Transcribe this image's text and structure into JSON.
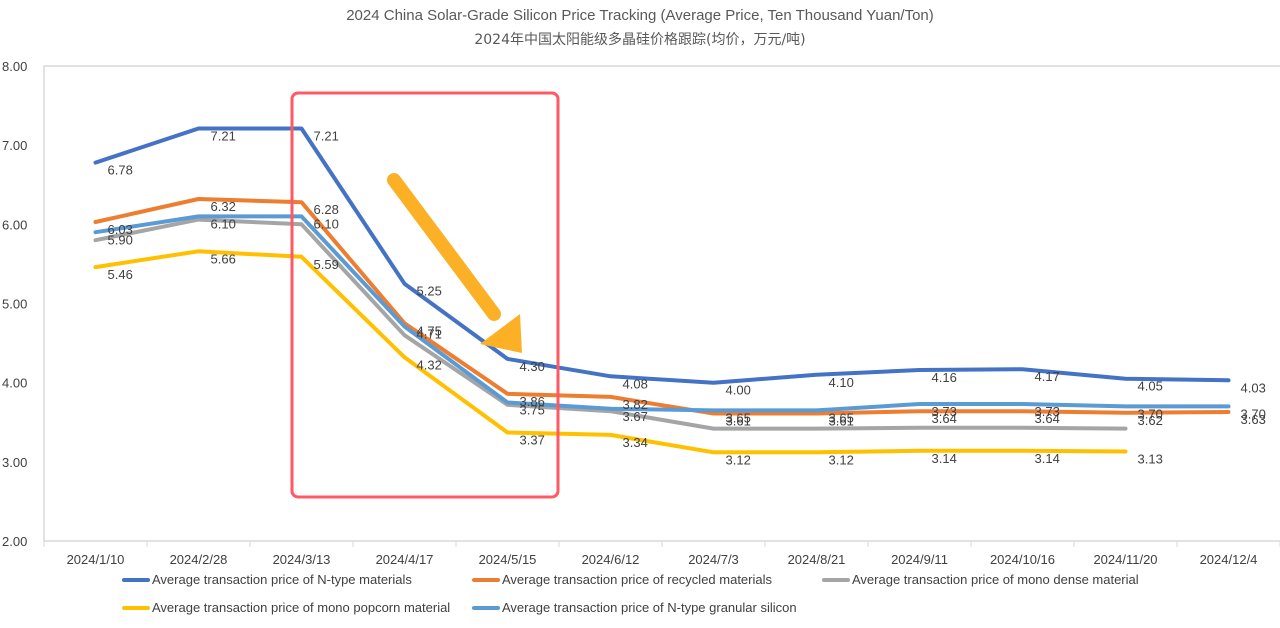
{
  "title": {
    "en": "2024 China Solar-Grade Silicon Price Tracking (Average Price, Ten Thousand Yuan/Ton)",
    "zh": "2024年中国太阳能级多晶硅价格跟踪(均价，万元/吨)"
  },
  "colors": {
    "n_type": "#4472C4",
    "recycled": "#ED7D31",
    "mono_dense": "#A5A5A5",
    "mono_popcorn": "#FFC000",
    "granular": "#5B9BD5",
    "highlight_box": "#FF5A64",
    "arrow": "#FBB025"
  },
  "legend": [
    {
      "key": "n_type",
      "label": "Average transaction price of N-type materials"
    },
    {
      "key": "recycled",
      "label": "Average transaction price of recycled materials"
    },
    {
      "key": "mono_dense",
      "label": "Average transaction price of mono dense material"
    },
    {
      "key": "mono_popcorn",
      "label": "Average transaction price of mono popcorn material"
    },
    {
      "key": "granular",
      "label": "Average transaction price of N-type granular silicon"
    }
  ],
  "chart_data": {
    "type": "line",
    "title": "2024 China Solar-Grade Silicon Price Tracking (Average Price, Ten Thousand Yuan/Ton) / 2024年中国太阳能级多晶硅价格跟踪(均价，万元/吨)",
    "xlabel": "",
    "ylabel": "",
    "ylim": [
      2.0,
      8.0
    ],
    "yticks": [
      "2.00",
      "3.00",
      "4.00",
      "5.00",
      "6.00",
      "7.00",
      "8.00"
    ],
    "grid": false,
    "legend_position": "bottom",
    "categories": [
      "2024/1/10",
      "2024/2/28",
      "2024/3/13",
      "2024/4/17",
      "2024/5/15",
      "2024/6/12",
      "2024/7/3",
      "2024/8/21",
      "2024/9/11",
      "2024/10/16",
      "2024/11/20",
      "2024/12/4"
    ],
    "series": [
      {
        "key": "n_type",
        "name": "Average transaction price of N-type materials",
        "values": [
          6.78,
          7.21,
          7.21,
          5.25,
          4.3,
          4.08,
          4.0,
          4.1,
          4.16,
          4.17,
          4.05,
          4.03
        ],
        "labels": [
          "6.78",
          "7.21",
          "7.21",
          "5.25",
          "4.30",
          "4.08",
          "4.00",
          "4.10",
          "4.16",
          "4.17",
          "4.05",
          "4.03"
        ]
      },
      {
        "key": "recycled",
        "name": "Average transaction price of recycled materials",
        "values": [
          6.03,
          6.32,
          6.28,
          4.75,
          3.86,
          3.82,
          3.61,
          3.61,
          3.64,
          3.64,
          3.62,
          3.63
        ],
        "labels": [
          "6.03",
          "6.32",
          "6.28",
          "4.75",
          "3.86",
          "3.82",
          "3.61",
          "3.61",
          "3.64",
          "3.64",
          "3.62",
          "3.63"
        ]
      },
      {
        "key": "mono_dense",
        "name": "Average transaction price of mono dense material",
        "values": [
          5.8,
          6.06,
          6.0,
          4.6,
          3.72,
          3.64,
          3.42,
          3.42,
          3.43,
          3.43,
          3.42,
          null
        ],
        "labels": [
          null,
          null,
          null,
          null,
          null,
          null,
          null,
          null,
          null,
          null,
          null,
          null
        ]
      },
      {
        "key": "mono_popcorn",
        "name": "Average transaction price of mono popcorn material",
        "values": [
          5.46,
          5.66,
          5.59,
          4.32,
          3.37,
          3.34,
          3.12,
          3.12,
          3.14,
          3.14,
          3.13,
          null
        ],
        "labels": [
          "5.46",
          "5.66",
          "5.59",
          "4.32",
          "3.37",
          "3.34",
          "3.12",
          "3.12",
          "3.14",
          "3.14",
          "3.13",
          null
        ]
      },
      {
        "key": "granular",
        "name": "Average transaction price of N-type granular silicon",
        "values": [
          5.9,
          6.1,
          6.1,
          4.71,
          3.75,
          3.67,
          3.65,
          3.65,
          3.73,
          3.73,
          3.7,
          3.7
        ],
        "labels": [
          "5.90",
          "6.10",
          "6.10",
          "4.71",
          "3.75",
          "3.67",
          "3.65",
          "3.65",
          "3.73",
          "3.73",
          "3.70",
          "3.70"
        ]
      }
    ],
    "annotations": [
      {
        "type": "highlight-box",
        "from": "2024/3/13",
        "to": "2024/5/15",
        "description": "red rounded rectangle highlighting the sharp price decline"
      },
      {
        "type": "arrow",
        "direction": "down-right",
        "description": "orange arrow indicating downward price trend"
      }
    ]
  }
}
